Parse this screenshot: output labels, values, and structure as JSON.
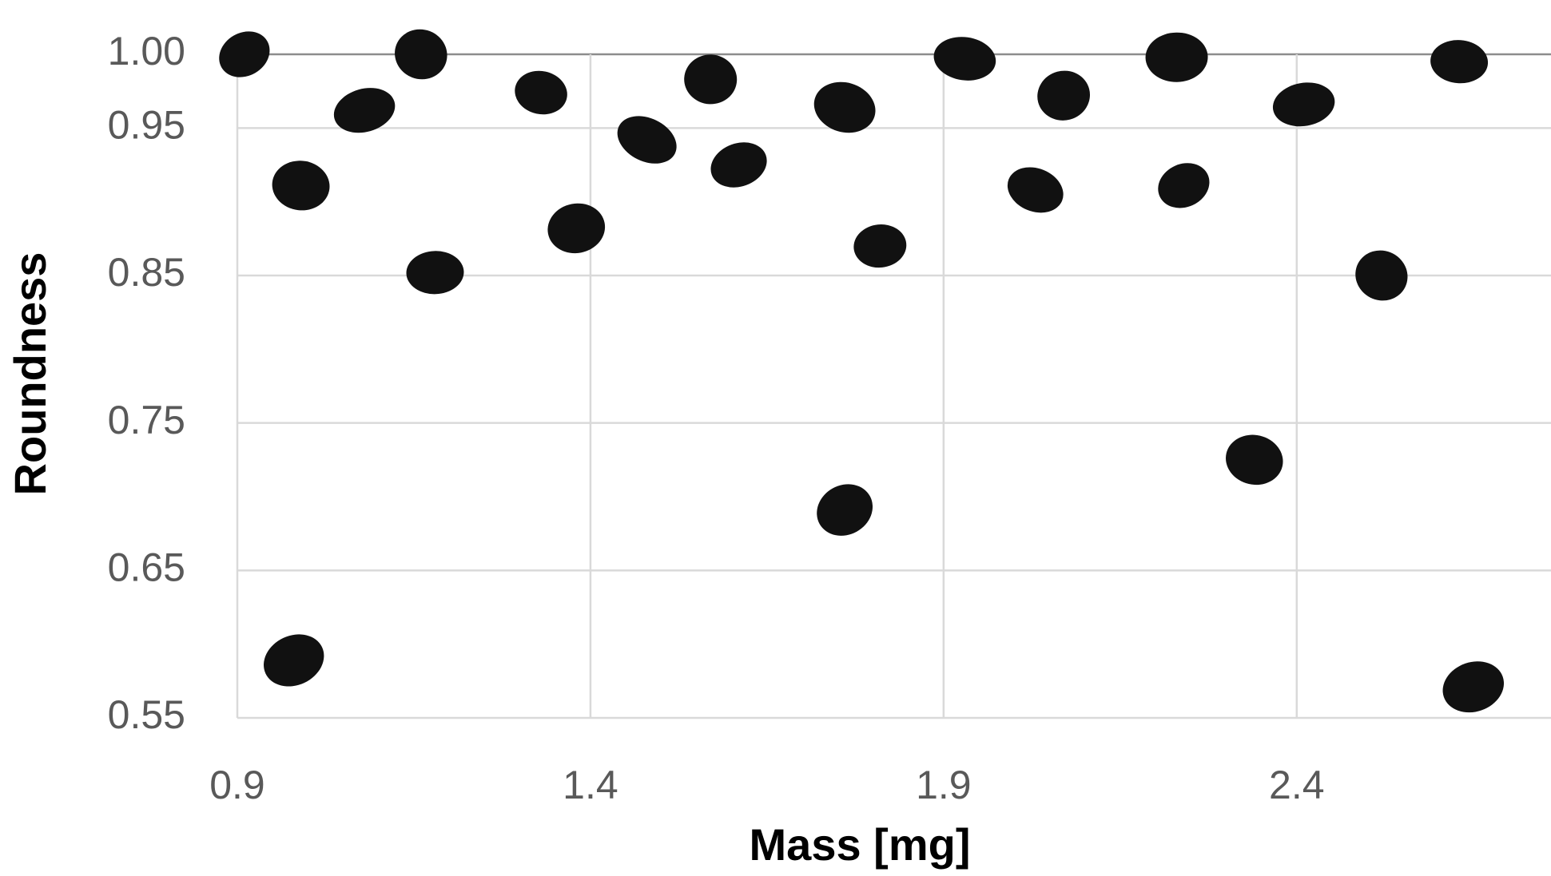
{
  "chart_data": {
    "type": "scatter",
    "xlabel": "Mass [mg]",
    "ylabel": "Roundness",
    "x": [
      0.91,
      0.99,
      1.08,
      1.16,
      1.18,
      0.98,
      1.33,
      1.38,
      1.48,
      1.57,
      1.61,
      1.76,
      1.81,
      1.76,
      1.93,
      2.07,
      2.03,
      2.23,
      2.24,
      2.34,
      2.41,
      2.52,
      2.63,
      2.65
    ],
    "values": [
      1.0,
      0.911,
      0.962,
      1.0,
      0.852,
      0.589,
      0.974,
      0.882,
      0.942,
      0.983,
      0.925,
      0.964,
      0.87,
      0.691,
      0.997,
      0.972,
      0.908,
      0.998,
      0.911,
      0.725,
      0.966,
      0.85,
      0.995,
      0.571
    ],
    "color": "#111111",
    "xlim": [
      0.9,
      2.76
    ],
    "ylim": [
      0.55,
      1.0
    ],
    "xticks": [
      0.9,
      1.4,
      1.9,
      2.4
    ],
    "yticks": [
      0.55,
      0.65,
      0.75,
      0.85,
      0.95,
      {
        "value": 1.0,
        "label": "1.00"
      }
    ],
    "grid": true
  }
}
